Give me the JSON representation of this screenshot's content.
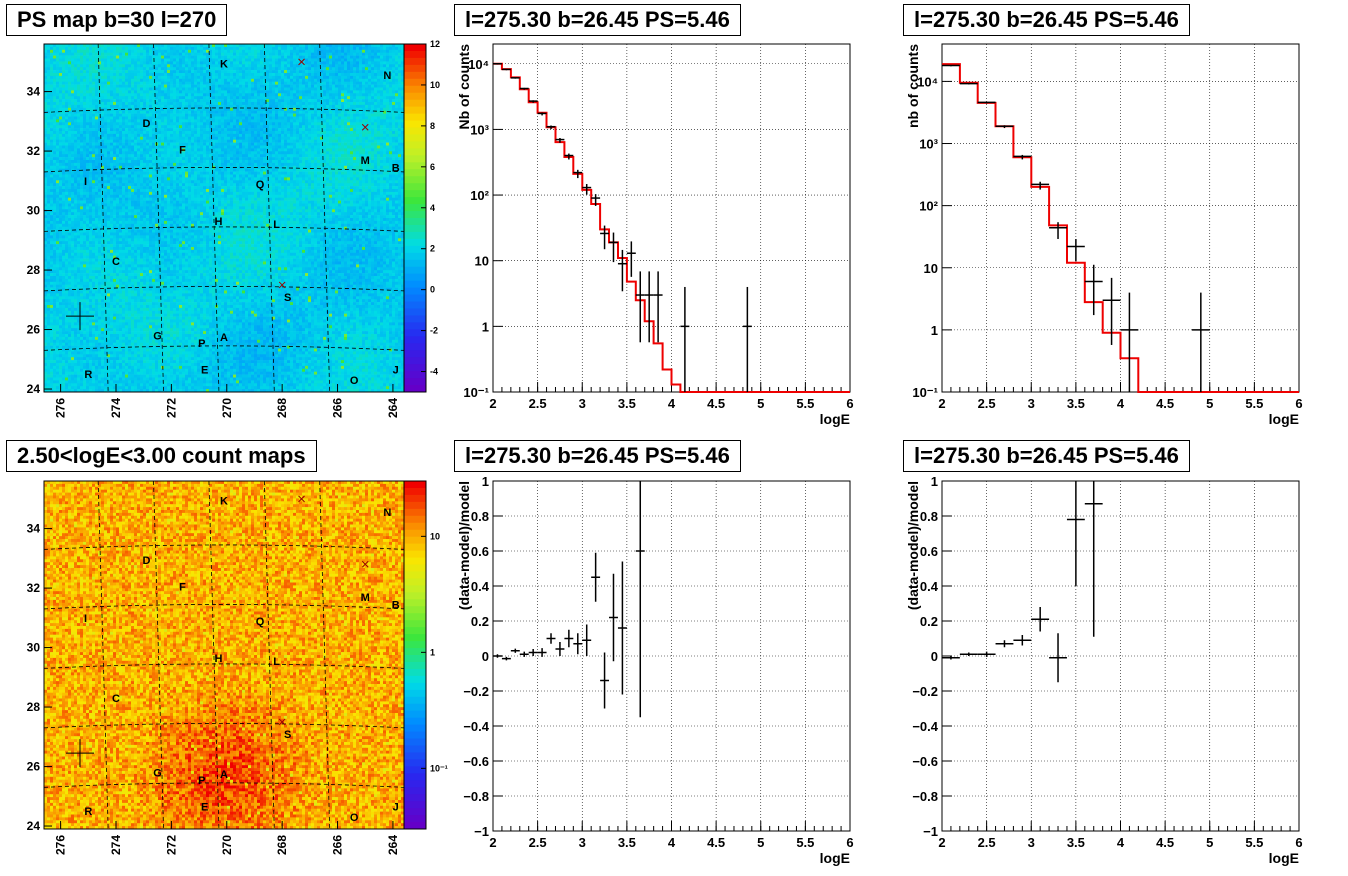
{
  "panels": {
    "ps_map": {
      "title": "PS map b=30 l=270"
    },
    "count_map": {
      "title": "2.50<logE<3.00 count maps"
    },
    "spec1": {
      "title": "l=275.30 b=26.45 PS=5.46"
    },
    "spec2": {
      "title": "l=275.30 b=26.45 PS=5.46"
    },
    "res1": {
      "title": "l=275.30 b=26.45 PS=5.46"
    },
    "res2": {
      "title": "l=275.30 b=26.45 PS=5.46"
    }
  },
  "map_axes": {
    "x_ticks": [
      "276",
      "274",
      "272",
      "270",
      "268",
      "266",
      "264"
    ],
    "y_ticks": [
      "24",
      "26",
      "28",
      "30",
      "32",
      "34"
    ]
  },
  "ps_colorbar": {
    "ticks": [
      "12",
      "10",
      "8",
      "6",
      "4",
      "2",
      "0",
      "-2",
      "-4"
    ]
  },
  "count_colorbar": {
    "ticks": [
      "10",
      "1",
      "10⁻¹"
    ]
  },
  "source_labels": [
    "K",
    "N",
    "D",
    "F",
    "M",
    "B",
    "I",
    "Q",
    "H",
    "L",
    "C",
    "S",
    "G",
    "P",
    "A",
    "E",
    "R",
    "O",
    "J"
  ],
  "chart_data": [
    {
      "type": "scatter",
      "title": "PS map b=30 l=270",
      "subtype": "heatmap",
      "xlim": [
        276.6,
        263.6
      ],
      "ylim": [
        23.9,
        35.6
      ],
      "colorscale": [
        -5,
        12
      ],
      "sources": [
        {
          "label": "K",
          "l": 270.1,
          "b": 34.95
        },
        {
          "label": "N",
          "l": 264.2,
          "b": 34.55
        },
        {
          "label": "D",
          "l": 272.9,
          "b": 32.95
        },
        {
          "label": "F",
          "l": 271.6,
          "b": 32.05
        },
        {
          "label": "M",
          "l": 265.0,
          "b": 31.7
        },
        {
          "label": "B",
          "l": 263.9,
          "b": 31.45
        },
        {
          "label": "I",
          "l": 275.1,
          "b": 31.0
        },
        {
          "label": "Q",
          "l": 268.8,
          "b": 30.9
        },
        {
          "label": "H",
          "l": 270.3,
          "b": 29.65
        },
        {
          "label": "L",
          "l": 268.2,
          "b": 29.55
        },
        {
          "label": "C",
          "l": 274.0,
          "b": 28.3
        },
        {
          "label": "S",
          "l": 267.8,
          "b": 27.1
        },
        {
          "label": "G",
          "l": 272.5,
          "b": 25.8
        },
        {
          "label": "P",
          "l": 270.9,
          "b": 25.55
        },
        {
          "label": "A",
          "l": 270.1,
          "b": 25.75
        },
        {
          "label": "E",
          "l": 270.8,
          "b": 24.65
        },
        {
          "label": "R",
          "l": 275.0,
          "b": 24.5
        },
        {
          "label": "O",
          "l": 265.4,
          "b": 24.3
        },
        {
          "label": "J",
          "l": 263.9,
          "b": 24.65
        }
      ],
      "markers": [
        {
          "l": 275.3,
          "b": 26.45,
          "kind": "plus"
        },
        {
          "l": 267.3,
          "b": 35.0,
          "kind": "cross"
        },
        {
          "l": 265.0,
          "b": 32.8,
          "kind": "cross"
        },
        {
          "l": 268.0,
          "b": 27.5,
          "kind": "cross"
        }
      ]
    },
    {
      "type": "line",
      "title": "l=275.30 b=26.45 PS=5.46",
      "xlabel": "logE",
      "ylabel": "Nb of counts",
      "log_y": true,
      "xlim": [
        2,
        6
      ],
      "ylim": [
        0.1,
        20000
      ],
      "x_ticks": [
        "2",
        "2.5",
        "3",
        "3.5",
        "4",
        "4.5",
        "5",
        "5.5",
        "6"
      ],
      "y_ticks": [
        "10⁻¹",
        "1",
        "10",
        "10²",
        "10³",
        "10⁴"
      ],
      "model_edges": [
        2.0,
        2.1,
        2.2,
        2.3,
        2.4,
        2.5,
        2.6,
        2.7,
        2.8,
        2.9,
        3.0,
        3.1,
        3.2,
        3.3,
        3.4,
        3.5,
        3.6,
        3.7,
        3.8,
        3.9,
        4.0,
        4.1,
        4.2,
        6.0
      ],
      "model": [
        10000,
        8300,
        6200,
        4100,
        2600,
        1800,
        1080,
        640,
        380,
        210,
        120,
        73,
        30,
        19,
        11,
        4.8,
        2.5,
        1.2,
        0.55,
        0.22,
        0.13,
        0.1,
        0.0
      ],
      "data": [
        {
          "x": 2.05,
          "y": 10000,
          "err": 0.01
        },
        {
          "x": 2.15,
          "y": 8200,
          "err": 0.01
        },
        {
          "x": 2.25,
          "y": 6100,
          "err": 0.01
        },
        {
          "x": 2.35,
          "y": 4200,
          "err": 0.015
        },
        {
          "x": 2.45,
          "y": 2700,
          "err": 0.02
        },
        {
          "x": 2.55,
          "y": 1750,
          "err": 0.025
        },
        {
          "x": 2.65,
          "y": 1100,
          "err": 0.03
        },
        {
          "x": 2.75,
          "y": 700,
          "err": 0.04
        },
        {
          "x": 2.85,
          "y": 400,
          "err": 0.05
        },
        {
          "x": 2.95,
          "y": 220,
          "err": 0.07
        },
        {
          "x": 3.05,
          "y": 130,
          "err": 0.09
        },
        {
          "x": 3.15,
          "y": 90,
          "err": 0.1
        },
        {
          "x": 3.25,
          "y": 26,
          "err": 0.2
        },
        {
          "x": 3.35,
          "y": 19,
          "err": 0.25
        },
        {
          "x": 3.45,
          "y": 9,
          "err": 0.35
        },
        {
          "x": 3.55,
          "y": 13,
          "err": 0.3
        },
        {
          "x": 3.65,
          "y": 3,
          "err": 0.6
        },
        {
          "x": 3.75,
          "y": 3,
          "err": 0.6
        },
        {
          "x": 3.85,
          "y": 3,
          "err": 0.6
        },
        {
          "x": 4.15,
          "y": 1,
          "err": 1.0
        },
        {
          "x": 4.85,
          "y": 1,
          "err": 1.0
        }
      ]
    },
    {
      "type": "line",
      "title": "l=275.30 b=26.45 PS=5.46",
      "xlabel": "logE",
      "ylabel": "nb of counts",
      "log_y": true,
      "xlim": [
        2,
        6
      ],
      "ylim": [
        0.1,
        40000
      ],
      "x_ticks": [
        "2",
        "2.5",
        "3",
        "3.5",
        "4",
        "4.5",
        "5",
        "5.5",
        "6"
      ],
      "y_ticks": [
        "10⁻¹",
        "1",
        "10",
        "10²",
        "10³",
        "10⁴"
      ],
      "model_edges": [
        2.0,
        2.2,
        2.4,
        2.6,
        2.8,
        3.0,
        3.2,
        3.4,
        3.6,
        3.8,
        4.0,
        4.2,
        6.0
      ],
      "model": [
        19000,
        9500,
        4500,
        1900,
        600,
        200,
        48,
        12,
        2.8,
        0.9,
        0.35,
        0.1,
        0.0
      ],
      "data": [
        {
          "x": 2.1,
          "y": 18000,
          "err": 0.01
        },
        {
          "x": 2.3,
          "y": 9200,
          "err": 0.01
        },
        {
          "x": 2.5,
          "y": 4600,
          "err": 0.015
        },
        {
          "x": 2.7,
          "y": 1900,
          "err": 0.025
        },
        {
          "x": 2.9,
          "y": 620,
          "err": 0.04
        },
        {
          "x": 3.1,
          "y": 220,
          "err": 0.07
        },
        {
          "x": 3.3,
          "y": 44,
          "err": 0.15
        },
        {
          "x": 3.5,
          "y": 22,
          "err": 0.2
        },
        {
          "x": 3.7,
          "y": 6,
          "err": 0.45
        },
        {
          "x": 3.9,
          "y": 3,
          "err": 0.6
        },
        {
          "x": 4.1,
          "y": 1,
          "err": 1.0
        },
        {
          "x": 4.9,
          "y": 1,
          "err": 1.0
        }
      ]
    },
    {
      "type": "scatter",
      "title": "2.50<logE<3.00 count maps",
      "subtype": "heatmap",
      "xlim": [
        276.6,
        263.6
      ],
      "ylim": [
        23.9,
        35.6
      ],
      "colorscale": [
        0.03,
        30
      ],
      "hotspot": {
        "l": 270.1,
        "b": 25.75
      }
    },
    {
      "type": "scatter",
      "title": "l=275.30 b=26.45 PS=5.46",
      "xlabel": "logE",
      "ylabel": "(data-model)/model",
      "xlim": [
        2,
        6
      ],
      "ylim": [
        -1,
        1
      ],
      "x_ticks": [
        "2",
        "2.5",
        "3",
        "3.5",
        "4",
        "4.5",
        "5",
        "5.5",
        "6"
      ],
      "y_ticks": [
        "−1",
        "−0.8",
        "−0.6",
        "−0.4",
        "−0.2",
        "0",
        "0.2",
        "0.4",
        "0.6",
        "0.8",
        "1"
      ],
      "data": [
        {
          "x": 2.05,
          "y": 0.0,
          "ey": 0.01
        },
        {
          "x": 2.15,
          "y": -0.015,
          "ey": 0.01
        },
        {
          "x": 2.25,
          "y": 0.03,
          "ey": 0.012
        },
        {
          "x": 2.35,
          "y": 0.01,
          "ey": 0.015
        },
        {
          "x": 2.45,
          "y": 0.02,
          "ey": 0.02
        },
        {
          "x": 2.55,
          "y": 0.02,
          "ey": 0.025
        },
        {
          "x": 2.65,
          "y": 0.1,
          "ey": 0.03
        },
        {
          "x": 2.75,
          "y": 0.04,
          "ey": 0.04
        },
        {
          "x": 2.85,
          "y": 0.1,
          "ey": 0.05
        },
        {
          "x": 2.95,
          "y": 0.07,
          "ey": 0.06
        },
        {
          "x": 3.05,
          "y": 0.09,
          "ey": 0.09
        },
        {
          "x": 3.15,
          "y": 0.45,
          "ey": 0.14
        },
        {
          "x": 3.25,
          "y": -0.14,
          "ey": 0.16
        },
        {
          "x": 3.35,
          "y": 0.22,
          "ey": 0.25
        },
        {
          "x": 3.45,
          "y": 0.16,
          "ey": 0.38
        },
        {
          "x": 3.65,
          "y": 0.6,
          "ey": 0.95
        }
      ]
    },
    {
      "type": "scatter",
      "title": "l=275.30 b=26.45 PS=5.46",
      "xlabel": "logE",
      "ylabel": "(data-model)/model",
      "xlim": [
        2,
        6
      ],
      "ylim": [
        -1,
        1
      ],
      "x_ticks": [
        "2",
        "2.5",
        "3",
        "3.5",
        "4",
        "4.5",
        "5",
        "5.5",
        "6"
      ],
      "y_ticks": [
        "−1",
        "−0.8",
        "−0.6",
        "−0.4",
        "−0.2",
        "0",
        "0.2",
        "0.4",
        "0.6",
        "0.8",
        "1"
      ],
      "data": [
        {
          "x": 2.1,
          "y": -0.01,
          "ey": 0.01
        },
        {
          "x": 2.3,
          "y": 0.01,
          "ey": 0.01
        },
        {
          "x": 2.5,
          "y": 0.01,
          "ey": 0.015
        },
        {
          "x": 2.7,
          "y": 0.07,
          "ey": 0.02
        },
        {
          "x": 2.9,
          "y": 0.09,
          "ey": 0.03
        },
        {
          "x": 3.1,
          "y": 0.21,
          "ey": 0.07
        },
        {
          "x": 3.3,
          "y": -0.01,
          "ey": 0.14
        },
        {
          "x": 3.5,
          "y": 0.78,
          "ey": 0.38
        },
        {
          "x": 3.7,
          "y": 0.87,
          "ey": 0.76
        }
      ]
    }
  ]
}
